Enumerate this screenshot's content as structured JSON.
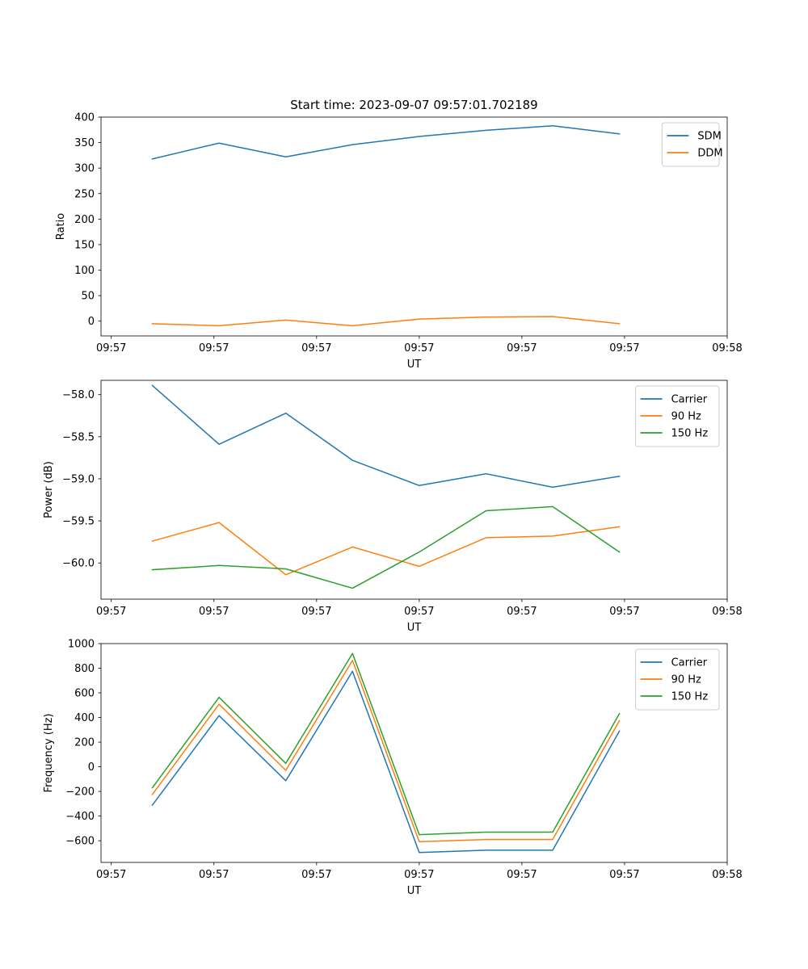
{
  "figure": {
    "title": "Start time: 2023-09-07 09:57:01.702189"
  },
  "palette": {
    "blue": "#1f77b4",
    "orange": "#ff7f0e",
    "green": "#2ca02c",
    "axis": "#000000",
    "legend_border": "#cccccc"
  },
  "chart_data": [
    {
      "id": "ratio",
      "type": "line",
      "title": "Start time: 2023-09-07 09:57:01.702189",
      "xlabel": "UT",
      "ylabel": "Ratio",
      "xlim": [
        -0.5,
        5.6
      ],
      "ylim": [
        -29,
        400
      ],
      "xticks": [
        {
          "v": -0.4,
          "label": "09:57"
        },
        {
          "v": 0.6,
          "label": "09:57"
        },
        {
          "v": 1.6,
          "label": "09:57"
        },
        {
          "v": 2.6,
          "label": "09:57"
        },
        {
          "v": 3.6,
          "label": "09:57"
        },
        {
          "v": 4.6,
          "label": "09:57"
        },
        {
          "v": 5.6,
          "label": "09:58"
        }
      ],
      "yticks": [
        {
          "v": 400,
          "label": "400"
        },
        {
          "v": 350,
          "label": "350"
        },
        {
          "v": 300,
          "label": "300"
        },
        {
          "v": 250,
          "label": "250"
        },
        {
          "v": 200,
          "label": "200"
        },
        {
          "v": 150,
          "label": "150"
        },
        {
          "v": 100,
          "label": "100"
        },
        {
          "v": 50,
          "label": "50"
        },
        {
          "v": 0,
          "label": "0"
        }
      ],
      "x": [
        0.0,
        0.65,
        1.3,
        1.95,
        2.6,
        3.25,
        3.9,
        4.55
      ],
      "legend": "top-right",
      "series": [
        {
          "name": "SDM",
          "color": "#1f77b4",
          "values": [
            318,
            349,
            322,
            346,
            362,
            374,
            383,
            367
          ]
        },
        {
          "name": "DDM",
          "color": "#ff7f0e",
          "values": [
            -5,
            -9,
            2,
            -9,
            4,
            8,
            9,
            -5
          ]
        }
      ]
    },
    {
      "id": "power",
      "type": "line",
      "xlabel": "UT",
      "ylabel": "Power (dB)",
      "xlim": [
        -0.5,
        5.6
      ],
      "ylim": [
        -60.43,
        -57.83
      ],
      "xticks": [
        {
          "v": -0.4,
          "label": "09:57"
        },
        {
          "v": 0.6,
          "label": "09:57"
        },
        {
          "v": 1.6,
          "label": "09:57"
        },
        {
          "v": 2.6,
          "label": "09:57"
        },
        {
          "v": 3.6,
          "label": "09:57"
        },
        {
          "v": 4.6,
          "label": "09:57"
        },
        {
          "v": 5.6,
          "label": "09:58"
        }
      ],
      "yticks": [
        {
          "v": -58.0,
          "label": "−58.0"
        },
        {
          "v": -58.5,
          "label": "−58.5"
        },
        {
          "v": -59.0,
          "label": "−59.0"
        },
        {
          "v": -59.5,
          "label": "−59.5"
        },
        {
          "v": -60.0,
          "label": "−60.0"
        }
      ],
      "x": [
        0.0,
        0.65,
        1.3,
        1.95,
        2.6,
        3.25,
        3.9,
        4.55
      ],
      "legend": "top-right",
      "series": [
        {
          "name": "Carrier",
          "color": "#1f77b4",
          "values": [
            -57.89,
            -58.59,
            -58.22,
            -58.78,
            -59.08,
            -58.94,
            -59.1,
            -58.97
          ]
        },
        {
          "name": "90 Hz",
          "color": "#ff7f0e",
          "values": [
            -59.74,
            -59.52,
            -60.14,
            -59.81,
            -60.04,
            -59.7,
            -59.68,
            -59.57
          ]
        },
        {
          "name": "150 Hz",
          "color": "#2ca02c",
          "values": [
            -60.08,
            -60.03,
            -60.07,
            -60.3,
            -59.87,
            -59.38,
            -59.33,
            -59.87
          ]
        }
      ]
    },
    {
      "id": "frequency",
      "type": "line",
      "xlabel": "UT",
      "ylabel": "Frequency (Hz)",
      "xlim": [
        -0.5,
        5.6
      ],
      "ylim": [
        -776,
        1000
      ],
      "xticks": [
        {
          "v": -0.4,
          "label": "09:57"
        },
        {
          "v": 0.6,
          "label": "09:57"
        },
        {
          "v": 1.6,
          "label": "09:57"
        },
        {
          "v": 2.6,
          "label": "09:57"
        },
        {
          "v": 3.6,
          "label": "09:57"
        },
        {
          "v": 4.6,
          "label": "09:57"
        },
        {
          "v": 5.6,
          "label": "09:58"
        }
      ],
      "yticks": [
        {
          "v": 1000,
          "label": "1000"
        },
        {
          "v": 800,
          "label": "800"
        },
        {
          "v": 600,
          "label": "600"
        },
        {
          "v": 400,
          "label": "400"
        },
        {
          "v": 200,
          "label": "200"
        },
        {
          "v": 0,
          "label": "0"
        },
        {
          "v": -200,
          "label": "−200"
        },
        {
          "v": -400,
          "label": "−400"
        },
        {
          "v": -600,
          "label": "−600"
        }
      ],
      "x": [
        0.0,
        0.65,
        1.3,
        1.95,
        2.6,
        3.25,
        3.9,
        4.55
      ],
      "legend": "top-right",
      "series": [
        {
          "name": "Carrier",
          "color": "#1f77b4",
          "values": [
            -311,
            415,
            -113,
            775,
            -696,
            -677,
            -677,
            290
          ]
        },
        {
          "name": "90 Hz",
          "color": "#ff7f0e",
          "values": [
            -225,
            508,
            -29,
            863,
            -608,
            -590,
            -590,
            375
          ]
        },
        {
          "name": "150 Hz",
          "color": "#2ca02c",
          "values": [
            -170,
            564,
            28,
            920,
            -551,
            -530,
            -530,
            432
          ]
        }
      ]
    }
  ]
}
